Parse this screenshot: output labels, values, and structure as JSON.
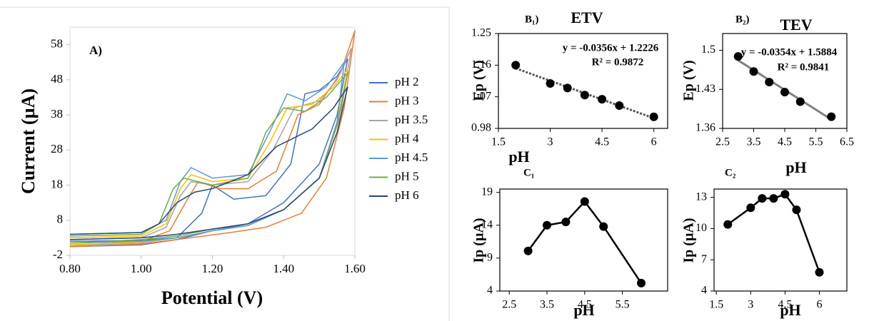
{
  "chart_data": [
    {
      "type": "line",
      "annotation": "A)",
      "x_label": "Potential (V)",
      "y_label": "Current (µA)",
      "legend": "right",
      "markers": false,
      "xlim": [
        0.8,
        1.6
      ],
      "ylim": [
        -2,
        63
      ],
      "xticks": [
        {
          "value": 0.8,
          "label": "0.80"
        },
        {
          "value": 1.0,
          "label": "1.00"
        },
        {
          "value": 1.2,
          "label": "1.20"
        },
        {
          "value": 1.4,
          "label": "1.40"
        },
        {
          "value": 1.6,
          "label": "1.60"
        }
      ],
      "yticks": [
        -2,
        8,
        18,
        28,
        38,
        48,
        58
      ],
      "series": [
        {
          "name": "pH 2",
          "color": "#4472c4",
          "x": [
            0.8,
            1.0,
            1.1,
            1.17,
            1.2,
            1.26,
            1.35,
            1.42,
            1.46,
            1.5,
            1.55,
            1.58,
            1.55,
            1.5,
            1.4,
            1.3,
            1.2,
            1.1,
            1.0,
            0.8
          ],
          "values": [
            2,
            2.3,
            3,
            10,
            18,
            14,
            15,
            24,
            44,
            45,
            49,
            54,
            38,
            24,
            13,
            7,
            5,
            2.5,
            1,
            0.5
          ]
        },
        {
          "name": "pH 3",
          "color": "#ed7d31",
          "x": [
            0.8,
            1.0,
            1.08,
            1.13,
            1.16,
            1.22,
            1.3,
            1.38,
            1.44,
            1.5,
            1.56,
            1.6,
            1.57,
            1.52,
            1.45,
            1.35,
            1.25,
            1.1,
            1.0,
            0.8
          ],
          "values": [
            1.5,
            2,
            5,
            14,
            19,
            17,
            17,
            22,
            38,
            41,
            50,
            62,
            40,
            20,
            10,
            6,
            4.5,
            2.5,
            1.2,
            0.5
          ]
        },
        {
          "name": "pH 3.5",
          "color": "#a5a5a5",
          "x": [
            0.8,
            1.0,
            1.07,
            1.11,
            1.14,
            1.2,
            1.3,
            1.37,
            1.43,
            1.5,
            1.55,
            1.59,
            1.56,
            1.5,
            1.4,
            1.3,
            1.2,
            1.1,
            1.0,
            0.8
          ],
          "values": [
            2.5,
            3,
            6,
            15,
            19,
            18,
            19,
            28,
            40,
            42,
            48,
            57,
            38,
            20,
            11,
            6.5,
            5,
            3,
            1.5,
            0.8
          ]
        },
        {
          "name": "pH 4",
          "color": "#ffc000",
          "x": [
            0.8,
            1.0,
            1.07,
            1.11,
            1.14,
            1.2,
            1.3,
            1.36,
            1.41,
            1.48,
            1.54,
            1.58,
            1.55,
            1.5,
            1.4,
            1.3,
            1.2,
            1.1,
            1.0,
            0.8
          ],
          "values": [
            3,
            3.5,
            7,
            17,
            21,
            19,
            20,
            30,
            40,
            41,
            46,
            51,
            36,
            20,
            11,
            6.5,
            5,
            3,
            1.8,
            1
          ]
        },
        {
          "name": "pH 4.5",
          "color": "#5b9bd5",
          "x": [
            0.8,
            1.0,
            1.07,
            1.11,
            1.14,
            1.2,
            1.3,
            1.36,
            1.41,
            1.46,
            1.52,
            1.57,
            1.55,
            1.5,
            1.4,
            1.3,
            1.2,
            1.1,
            1.0,
            0.8
          ],
          "values": [
            4,
            4.5,
            8,
            19,
            23,
            20,
            21,
            33,
            44,
            42,
            46,
            53,
            36,
            20,
            11,
            6.5,
            5,
            3,
            2,
            1.5
          ]
        },
        {
          "name": "pH 5",
          "color": "#70ad47",
          "x": [
            0.8,
            1.0,
            1.05,
            1.09,
            1.12,
            1.2,
            1.3,
            1.35,
            1.4,
            1.46,
            1.52,
            1.58,
            1.55,
            1.5,
            1.4,
            1.3,
            1.2,
            1.1,
            1.0,
            0.8
          ],
          "values": [
            3.5,
            4,
            7,
            17,
            20,
            18,
            20,
            33,
            40,
            39,
            43,
            50,
            35,
            20,
            11,
            7,
            5.5,
            3.5,
            2.5,
            1.5
          ]
        },
        {
          "name": "pH 6",
          "color": "#264478",
          "x": [
            0.8,
            1.0,
            1.05,
            1.1,
            1.15,
            1.2,
            1.3,
            1.38,
            1.42,
            1.48,
            1.54,
            1.58,
            1.55,
            1.5,
            1.4,
            1.3,
            1.2,
            1.1,
            1.0,
            0.8
          ],
          "values": [
            4,
            4.5,
            7,
            13,
            16,
            17,
            21,
            29,
            31,
            34,
            40,
            46,
            33,
            20,
            11,
            7,
            5.5,
            4,
            3,
            2.5
          ]
        }
      ]
    },
    {
      "type": "scatter",
      "title": "ETV",
      "annotation": "B₁)",
      "equation": "y = -0.0356x + 1.2226",
      "r_squared": "R² = 0.9872",
      "x_label": "pH",
      "y_label": "Ep (V)",
      "color": "#000000",
      "xlim": [
        1.5,
        6.4
      ],
      "ylim": [
        0.98,
        1.25
      ],
      "xticks": [
        1.5,
        3,
        4.5,
        6
      ],
      "yticks": [
        0.98,
        1.07,
        1.16,
        1.25
      ],
      "x": [
        2,
        3,
        3.5,
        4,
        4.5,
        5,
        6
      ],
      "values": [
        1.16,
        1.108,
        1.095,
        1.075,
        1.063,
        1.045,
        1.013
      ],
      "trendline": {
        "x": [
          2,
          6
        ],
        "values": [
          1.151,
          1.009
        ],
        "color": "#555555",
        "dash": true
      }
    },
    {
      "type": "scatter",
      "title": "TEV",
      "annotation": "B₂)",
      "equation": "y = -0.0354x + 1.5884",
      "r_squared": "R² = 0.9841",
      "x_label": "pH",
      "y_label": "Ep (V)",
      "color": "#000000",
      "xlim": [
        2.5,
        6.5
      ],
      "ylim": [
        1.36,
        1.53
      ],
      "xticks": [
        2.5,
        3.5,
        4.5,
        5.5,
        6.5
      ],
      "yticks": [
        1.36,
        1.43,
        1.5
      ],
      "x": [
        3,
        3.5,
        4,
        4.5,
        5,
        6
      ],
      "values": [
        1.489,
        1.462,
        1.443,
        1.425,
        1.408,
        1.381
      ],
      "trendline": {
        "x": [
          3,
          6
        ],
        "values": [
          1.482,
          1.376
        ],
        "color": "#808080",
        "dash": false
      }
    },
    {
      "type": "line",
      "annotation": "C₁",
      "x_label": "pH",
      "y_label": "Ip (µA)",
      "color": "#000000",
      "markers": true,
      "xlim": [
        2.25,
        6.7
      ],
      "ylim": [
        4,
        19.5
      ],
      "xticks": [
        2.5,
        3.5,
        4.5,
        5.5
      ],
      "yticks": [
        4,
        9,
        14,
        19
      ],
      "x": [
        3,
        3.5,
        4,
        4.5,
        5,
        6
      ],
      "values": [
        10.1,
        14,
        14.5,
        17.6,
        13.8,
        5.2
      ]
    },
    {
      "type": "line",
      "annotation": "C₂",
      "x_label": "pH",
      "y_label": "Ip (µA)",
      "color": "#000000",
      "markers": true,
      "xlim": [
        1.4,
        7.2
      ],
      "ylim": [
        4,
        13.8
      ],
      "xticks": [
        1.5,
        3,
        4.5,
        6
      ],
      "yticks": [
        4,
        7,
        10,
        13
      ],
      "x": [
        2,
        3,
        3.5,
        4,
        4.5,
        5,
        6
      ],
      "values": [
        10.4,
        12,
        12.9,
        12.9,
        13.3,
        11.8,
        5.8
      ]
    }
  ]
}
